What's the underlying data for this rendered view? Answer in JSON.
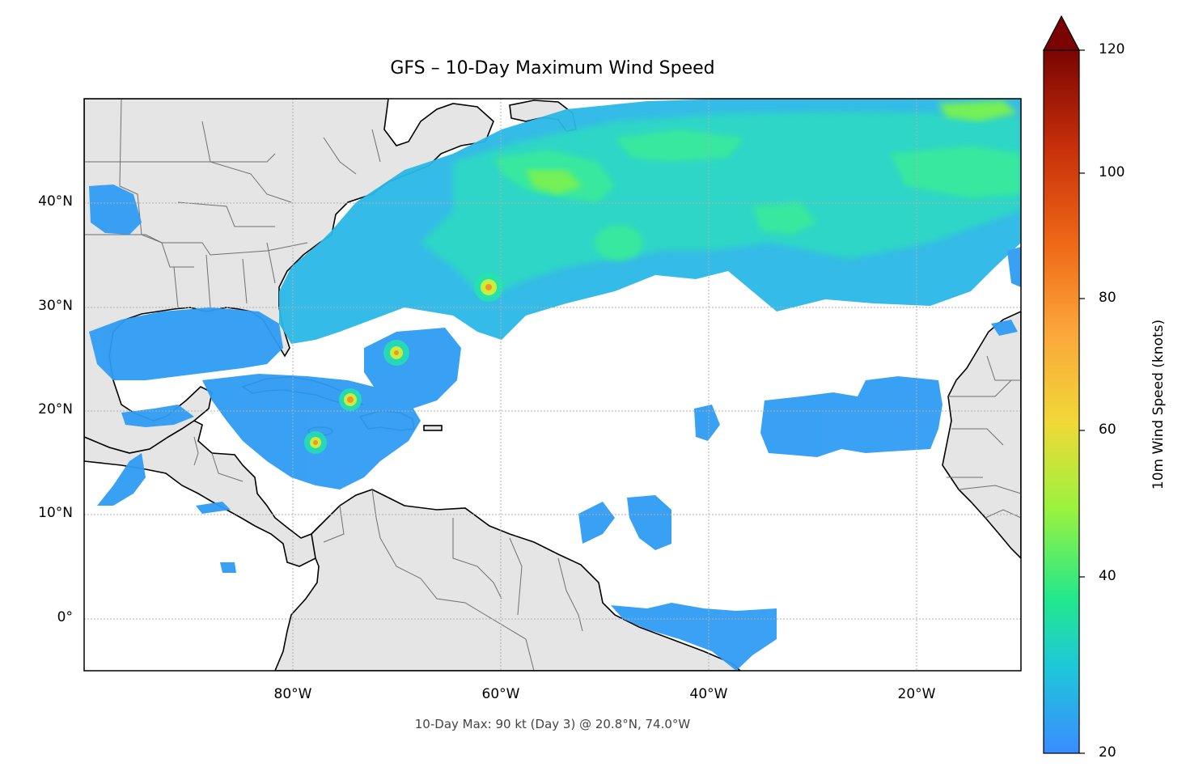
{
  "title": "GFS – 10-Day Maximum Wind Speed",
  "footnote": "10-Day Max: 90 kt (Day 3) @ 20.8°N, 74.0°W",
  "map": {
    "extent": {
      "lon_min": -100,
      "lon_max": -10,
      "lat_min": -5,
      "lat_max": 50
    },
    "lat_ticks": [
      {
        "value": 40,
        "label": "40°N"
      },
      {
        "value": 30,
        "label": "30°N"
      },
      {
        "value": 20,
        "label": "20°N"
      },
      {
        "value": 10,
        "label": "10°N"
      },
      {
        "value": 0,
        "label": "0°"
      }
    ],
    "lon_ticks": [
      {
        "value": -80,
        "label": "80°W"
      },
      {
        "value": -60,
        "label": "60°W"
      },
      {
        "value": -40,
        "label": "40°W"
      },
      {
        "value": -20,
        "label": "20°W"
      }
    ],
    "gridlines": true,
    "land_color": "#e5e5e5",
    "storm_maxima": [
      {
        "lat": 20.8,
        "lon": -74.0,
        "value": 90
      },
      {
        "lat": 32.0,
        "lon": -61.0,
        "value": 80
      },
      {
        "lat": 25.8,
        "lon": -69.6,
        "value": 75
      },
      {
        "lat": 16.8,
        "lon": -77.7,
        "value": 75
      }
    ]
  },
  "colorbar": {
    "label": "10m Wind Speed (knots)",
    "min": 20,
    "max": 120,
    "ticks": [
      "20",
      "40",
      "60",
      "80",
      "100",
      "120"
    ],
    "tick_values": [
      20,
      40,
      60,
      80,
      100,
      120
    ],
    "extend": "max",
    "colors": [
      "#3a8cff",
      "#1ec8d8",
      "#22e88c",
      "#9cf23c",
      "#f0d838",
      "#fba63a",
      "#f06a18",
      "#c8300a",
      "#7a0403"
    ]
  }
}
